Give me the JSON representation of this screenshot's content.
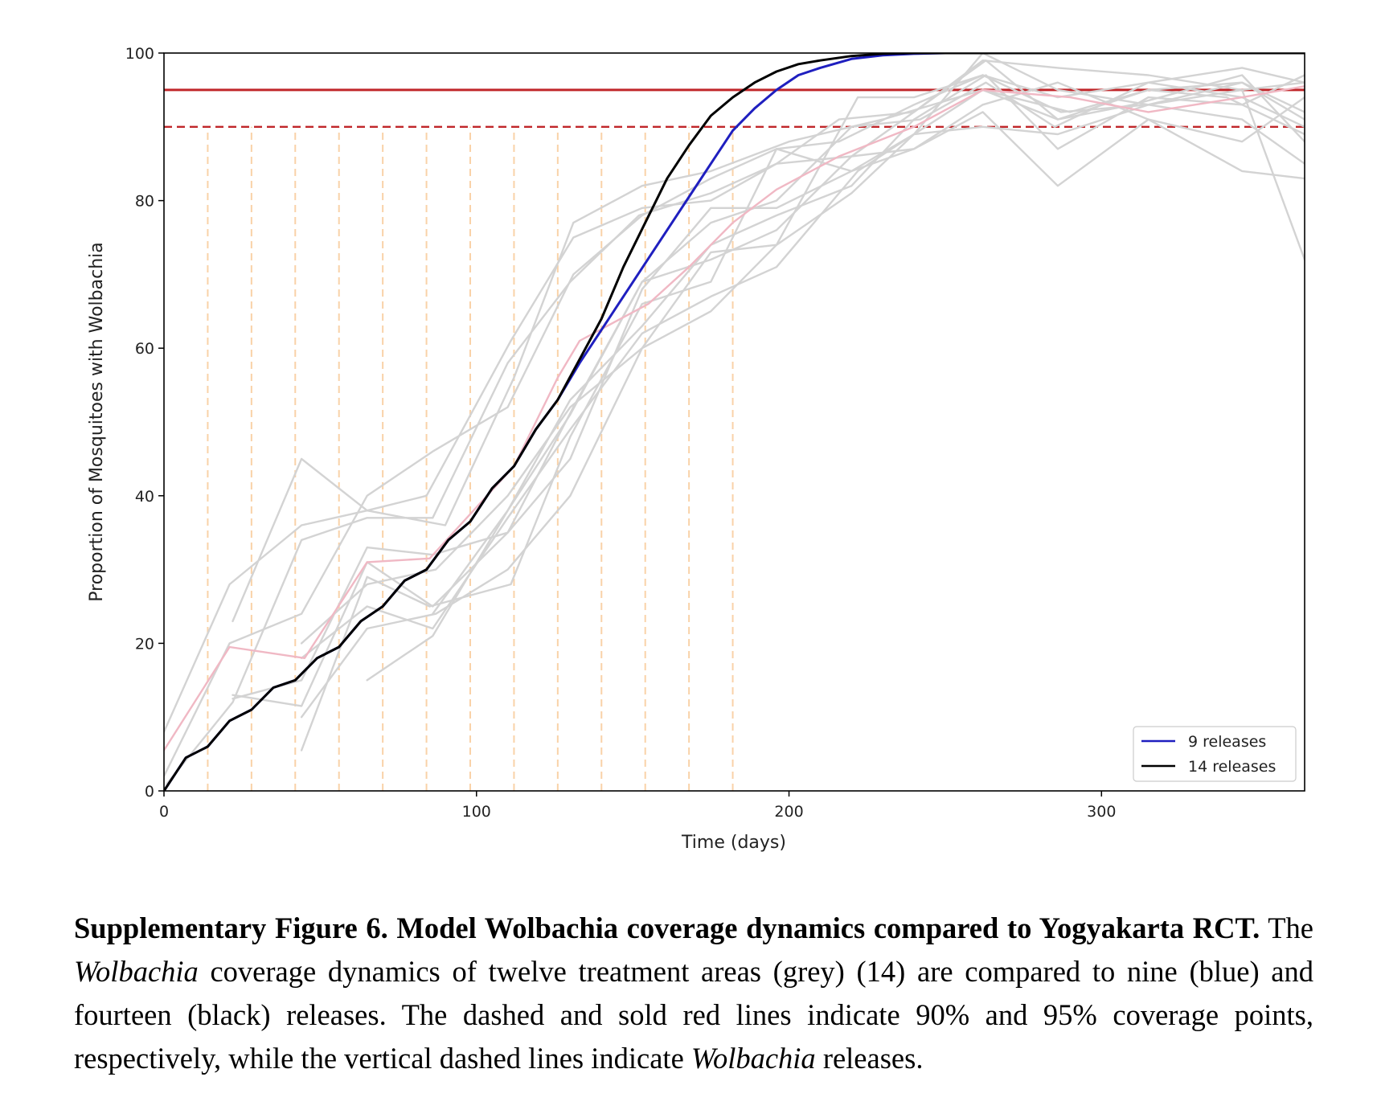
{
  "chart_data": {
    "type": "line",
    "xlabel": "Time (days)",
    "ylabel": "Proportion of Mosquitoes with Wolbachia",
    "xlim": [
      0,
      365
    ],
    "ylim": [
      0,
      100
    ],
    "xticks": [
      0,
      100,
      200,
      300
    ],
    "yticks": [
      0,
      20,
      40,
      60,
      80,
      100
    ],
    "grid": false,
    "legend_position": "bottom-right",
    "colors": {
      "model_9": "#1f1fbf",
      "model_14": "#000000",
      "treatment_area": "#d3d3d3",
      "highlight_area": "#f0b8c4",
      "threshold": "#c0262a",
      "release_marker": "#f9d2a8"
    },
    "reference_lines": [
      {
        "y": 95,
        "style": "solid"
      },
      {
        "y": 90,
        "style": "dashed"
      }
    ],
    "release_days": [
      14,
      28,
      42,
      56,
      70,
      84,
      98,
      112,
      126,
      140,
      154,
      168,
      182
    ],
    "series": [
      {
        "name": "9 releases",
        "style": "model_9",
        "x": [
          0,
          7,
          14,
          21,
          28,
          35,
          42,
          49,
          56,
          63,
          70,
          77,
          84,
          91,
          98,
          105,
          112,
          119,
          126,
          133,
          140,
          147,
          154,
          161,
          168,
          175,
          182,
          189,
          196,
          203,
          210,
          220,
          230,
          240,
          250,
          260,
          275,
          290,
          310,
          330,
          350,
          365
        ],
        "y": [
          0,
          4.5,
          6,
          9.5,
          11,
          14,
          15,
          18,
          19.5,
          23,
          25,
          28.5,
          30,
          34,
          36.5,
          41,
          44,
          49,
          53,
          58,
          62.5,
          67,
          71.5,
          76,
          80.5,
          85,
          89.5,
          92.5,
          95,
          97,
          98,
          99.2,
          99.7,
          99.9,
          100,
          100,
          100,
          100,
          100,
          100,
          100,
          100
        ]
      },
      {
        "name": "14 releases",
        "style": "model_14",
        "x": [
          0,
          7,
          14,
          21,
          28,
          35,
          42,
          49,
          56,
          63,
          70,
          77,
          84,
          91,
          98,
          105,
          112,
          119,
          126,
          133,
          140,
          147,
          154,
          161,
          168,
          175,
          182,
          189,
          196,
          203,
          210,
          220,
          230,
          240,
          250,
          260,
          275,
          290,
          310,
          330,
          350,
          365
        ],
        "y": [
          0,
          4.5,
          6,
          9.5,
          11,
          14,
          15,
          18,
          19.5,
          23,
          25,
          28.5,
          30,
          34,
          36.5,
          41,
          44,
          49,
          53,
          58.5,
          64,
          71,
          77,
          83,
          87.5,
          91.5,
          94,
          96,
          97.5,
          98.5,
          99,
          99.6,
          99.9,
          100,
          100,
          100,
          100,
          100,
          100,
          100,
          100,
          100
        ]
      },
      {
        "style": "highlight_area",
        "x": [
          0,
          21,
          45,
          65,
          85,
          112,
          126,
          133,
          155,
          168,
          182,
          196,
          216,
          240,
          262,
          290,
          315,
          345,
          365
        ],
        "y": [
          5.5,
          19.5,
          18,
          31,
          31.5,
          44,
          56,
          61,
          66,
          71,
          77,
          81.5,
          86,
          90,
          95,
          94,
          92,
          94,
          95.5
        ]
      },
      {
        "style": "treatment_area",
        "x": [
          0,
          21,
          44,
          65,
          90,
          112,
          131,
          153,
          175,
          200,
          230,
          262,
          290,
          315,
          345,
          365
        ],
        "y": [
          8,
          28,
          36,
          38,
          36,
          56,
          77,
          82,
          84,
          88,
          91,
          95,
          92,
          95,
          96,
          92
        ]
      },
      {
        "style": "treatment_area",
        "x": [
          22,
          44,
          65,
          84,
          111,
          131,
          153,
          175,
          196,
          216,
          240,
          263,
          286,
          310,
          345,
          365
        ],
        "y": [
          23,
          45,
          38,
          40,
          61,
          75,
          79,
          80,
          85,
          91,
          92,
          99,
          91,
          93,
          97,
          88
        ]
      },
      {
        "style": "treatment_area",
        "x": [
          0,
          21,
          44,
          65,
          86,
          110,
          131,
          153,
          175,
          196,
          216,
          240,
          262,
          287,
          315,
          345,
          365
        ],
        "y": [
          2,
          20,
          24,
          40,
          46,
          52,
          70,
          78,
          83,
          87,
          88,
          93,
          97,
          92,
          93,
          91,
          85
        ]
      },
      {
        "style": "treatment_area",
        "x": [
          1,
          22,
          44,
          65,
          86,
          110,
          130,
          152,
          175,
          196,
          220,
          240,
          262,
          286,
          315,
          345,
          365
        ],
        "y": [
          1,
          12,
          34,
          37,
          37,
          58,
          69,
          78,
          81,
          85,
          86,
          92,
          99,
          98,
          97,
          95,
          72
        ]
      },
      {
        "style": "treatment_area",
        "x": [
          22,
          44,
          65,
          86,
          110,
          131,
          153,
          175,
          196,
          220,
          242,
          263,
          285,
          315,
          345,
          365
        ],
        "y": [
          13,
          11.5,
          31,
          25,
          35,
          52,
          69,
          77,
          80,
          90,
          91,
          96,
          90,
          96,
          98,
          96
        ]
      },
      {
        "style": "treatment_area",
        "x": [
          22,
          44,
          65,
          86,
          110,
          130,
          153,
          175,
          196,
          220,
          240,
          262,
          286,
          315,
          345,
          365
        ],
        "y": [
          12.5,
          15,
          33,
          32,
          35,
          45,
          68,
          79,
          79,
          84,
          89,
          100,
          95,
          93,
          96,
          91
        ]
      },
      {
        "style": "treatment_area",
        "x": [
          44,
          65,
          87,
          110,
          130,
          153,
          175,
          196,
          222,
          240,
          262,
          286,
          315,
          345,
          365
        ],
        "y": [
          20,
          28,
          30,
          40,
          52,
          60,
          65,
          74,
          94,
          94,
          97,
          94,
          96,
          94,
          90
        ]
      },
      {
        "style": "treatment_area",
        "x": [
          44,
          65,
          87,
          110,
          130,
          153,
          175,
          196,
          220,
          240,
          262,
          286,
          315,
          340,
          365
        ],
        "y": [
          10,
          22,
          24,
          30,
          40,
          60,
          73,
          74,
          81,
          89,
          95,
          91,
          95,
          94,
          89
        ]
      },
      {
        "style": "treatment_area",
        "x": [
          44,
          65,
          85,
          111,
          130,
          153,
          175,
          196,
          220,
          240,
          262,
          286,
          315,
          345,
          365
        ],
        "y": [
          5.5,
          29,
          25,
          28,
          48,
          66,
          69,
          87,
          84,
          87,
          93,
          96,
          91,
          88,
          94
        ]
      },
      {
        "style": "treatment_area",
        "x": [
          44,
          65,
          86,
          110,
          130,
          153,
          175,
          196,
          222,
          240,
          262,
          286,
          315,
          345,
          365
        ],
        "y": [
          18,
          25,
          22,
          37,
          49,
          62,
          67,
          71,
          84,
          89,
          90,
          89,
          93,
          95,
          96
        ]
      },
      {
        "style": "treatment_area",
        "x": [
          65,
          86,
          110,
          130,
          153,
          175,
          196,
          220,
          240,
          263,
          286,
          315,
          345,
          365
        ],
        "y": [
          15,
          21,
          38,
          53,
          63,
          74,
          78,
          82,
          91,
          97,
          87,
          94,
          93,
          97
        ]
      },
      {
        "style": "treatment_area",
        "x": [
          86,
          110,
          130,
          153,
          175,
          196,
          220,
          240,
          262,
          286,
          315,
          345,
          365
        ],
        "y": [
          24,
          38,
          51,
          69,
          72,
          76,
          86,
          87,
          92,
          82,
          91,
          84,
          83
        ]
      }
    ]
  },
  "caption": {
    "bold": "Supplementary Figure 6. Model Wolbachia coverage dynamics compared to Yogyakarta RCT.",
    "p1": " The ",
    "i1": "Wolbachia",
    "p2": " coverage dynamics of twelve treatment areas (grey) (14) are compared to nine (blue) and fourteen (black) releases. The dashed and sold red lines indicate 90% and 95% coverage points, respectively, while the vertical dashed lines indicate ",
    "i2": "Wolbachia",
    "p3": " releases."
  }
}
